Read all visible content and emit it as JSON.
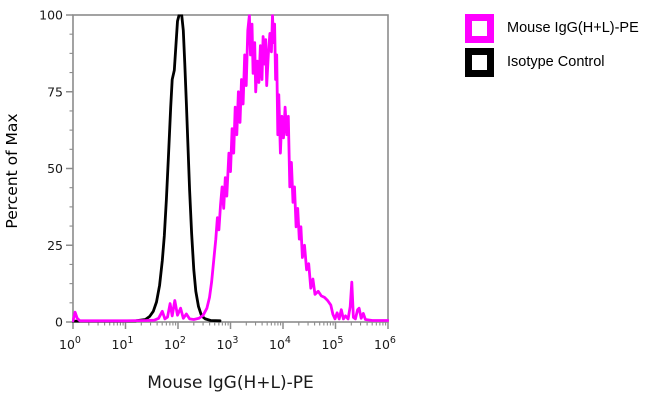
{
  "figure": {
    "y_axis_label": "Percent of Max",
    "x_axis_title": "Mouse IgG(H+L)-PE"
  },
  "legend": {
    "items": [
      {
        "name": "mouse-igg-pe",
        "label": "Mouse IgG(H+L)-PE",
        "color": "#FF00FF"
      },
      {
        "name": "isotype-control",
        "label": "Isotype Control",
        "color": "#000000"
      }
    ]
  },
  "colors": {
    "axis": "#8c8c8c",
    "tick_label": "#1a1a1a",
    "background": "#ffffff",
    "magenta_series": "#FF00FF",
    "black_series": "#000000"
  },
  "chart_data": {
    "type": "line",
    "subtype": "flow-cytometry-histogram-overlay",
    "title": "",
    "xlabel": "Mouse IgG(H+L)-PE",
    "ylabel": "Percent of Max",
    "x_scale": "log10",
    "x_decade_range": [
      0,
      6
    ],
    "x_tick_exponents": [
      0,
      1,
      2,
      3,
      4,
      5,
      6
    ],
    "x_tick_base": "10",
    "ylim": [
      0,
      100
    ],
    "y_major_ticks": [
      0,
      25,
      50,
      75,
      100
    ],
    "y_minor_step": 6.25,
    "grid": false,
    "legend_position": "top-right-outside",
    "series": [
      {
        "name": "Isotype Control",
        "color": "#000000",
        "points": [
          [
            0.0,
            0.3
          ],
          [
            0.8,
            0.3
          ],
          [
            1.2,
            0.4
          ],
          [
            1.38,
            0.8
          ],
          [
            1.46,
            1.8
          ],
          [
            1.53,
            3.5
          ],
          [
            1.59,
            6.5
          ],
          [
            1.65,
            12
          ],
          [
            1.7,
            20
          ],
          [
            1.74,
            28
          ],
          [
            1.78,
            40
          ],
          [
            1.82,
            55
          ],
          [
            1.86,
            70
          ],
          [
            1.89,
            79
          ],
          [
            1.93,
            82
          ],
          [
            1.96,
            90
          ],
          [
            1.99,
            98
          ],
          [
            2.02,
            100
          ],
          [
            2.07,
            100
          ],
          [
            2.1,
            95
          ],
          [
            2.13,
            84
          ],
          [
            2.16,
            71
          ],
          [
            2.19,
            57
          ],
          [
            2.22,
            43
          ],
          [
            2.26,
            29
          ],
          [
            2.3,
            17
          ],
          [
            2.34,
            10
          ],
          [
            2.39,
            5
          ],
          [
            2.45,
            2
          ],
          [
            2.52,
            1
          ],
          [
            2.62,
            0.5
          ],
          [
            2.8,
            0.4
          ]
        ]
      },
      {
        "name": "Mouse IgG(H+L)-PE",
        "color": "#FF00FF",
        "points": [
          [
            0.0,
            0.4
          ],
          [
            0.04,
            3.2
          ],
          [
            0.08,
            1.2
          ],
          [
            0.13,
            0.4
          ],
          [
            0.5,
            0.4
          ],
          [
            1.0,
            0.4
          ],
          [
            1.4,
            0.5
          ],
          [
            1.55,
            0.6
          ],
          [
            1.63,
            1.2
          ],
          [
            1.7,
            3.5
          ],
          [
            1.75,
            1.0
          ],
          [
            1.8,
            1.6
          ],
          [
            1.85,
            6.0
          ],
          [
            1.89,
            2.0
          ],
          [
            1.94,
            7.0
          ],
          [
            1.99,
            2.2
          ],
          [
            2.05,
            4.5
          ],
          [
            2.1,
            1.2
          ],
          [
            2.16,
            2.6
          ],
          [
            2.22,
            1.0
          ],
          [
            2.3,
            0.8
          ],
          [
            2.4,
            1.2
          ],
          [
            2.48,
            2.2
          ],
          [
            2.55,
            4.5
          ],
          [
            2.6,
            8.0
          ],
          [
            2.64,
            13
          ],
          [
            2.68,
            20
          ],
          [
            2.72,
            27
          ],
          [
            2.75,
            34
          ],
          [
            2.78,
            30
          ],
          [
            2.81,
            38
          ],
          [
            2.84,
            44
          ],
          [
            2.87,
            37
          ],
          [
            2.9,
            47
          ],
          [
            2.93,
            41
          ],
          [
            2.97,
            55
          ],
          [
            3.0,
            49
          ],
          [
            3.03,
            63
          ],
          [
            3.06,
            55
          ],
          [
            3.09,
            70
          ],
          [
            3.12,
            61
          ],
          [
            3.15,
            75
          ],
          [
            3.18,
            65
          ],
          [
            3.21,
            79
          ],
          [
            3.24,
            71
          ],
          [
            3.27,
            87
          ],
          [
            3.3,
            77
          ],
          [
            3.33,
            95
          ],
          [
            3.36,
            100
          ],
          [
            3.38,
            87
          ],
          [
            3.41,
            97
          ],
          [
            3.43,
            81
          ],
          [
            3.46,
            91
          ],
          [
            3.48,
            75
          ],
          [
            3.51,
            85
          ],
          [
            3.54,
            78
          ],
          [
            3.57,
            90
          ],
          [
            3.6,
            79
          ],
          [
            3.62,
            93
          ],
          [
            3.65,
            84
          ],
          [
            3.67,
            92
          ],
          [
            3.69,
            77
          ],
          [
            3.72,
            87
          ],
          [
            3.75,
            94
          ],
          [
            3.78,
            88
          ],
          [
            3.8,
            100
          ],
          [
            3.82,
            91
          ],
          [
            3.84,
            97
          ],
          [
            3.86,
            79
          ],
          [
            3.88,
            87
          ],
          [
            3.9,
            61
          ],
          [
            3.92,
            74
          ],
          [
            3.95,
            55
          ],
          [
            3.98,
            67
          ],
          [
            4.01,
            60
          ],
          [
            4.04,
            70
          ],
          [
            4.07,
            61
          ],
          [
            4.1,
            67
          ],
          [
            4.13,
            44
          ],
          [
            4.16,
            52
          ],
          [
            4.19,
            39
          ],
          [
            4.22,
            44
          ],
          [
            4.25,
            31
          ],
          [
            4.28,
            37
          ],
          [
            4.31,
            27
          ],
          [
            4.34,
            31
          ],
          [
            4.37,
            21
          ],
          [
            4.41,
            25
          ],
          [
            4.45,
            17
          ],
          [
            4.49,
            19
          ],
          [
            4.53,
            11
          ],
          [
            4.57,
            14
          ],
          [
            4.61,
            9
          ],
          [
            4.67,
            10
          ],
          [
            4.73,
            8.5
          ],
          [
            4.79,
            8
          ],
          [
            4.85,
            7
          ],
          [
            4.91,
            5.5
          ],
          [
            4.95,
            2.5
          ],
          [
            4.99,
            1.0
          ],
          [
            5.03,
            3.0
          ],
          [
            5.07,
            1.0
          ],
          [
            5.11,
            4.0
          ],
          [
            5.15,
            1.0
          ],
          [
            5.19,
            2.0
          ],
          [
            5.24,
            1.0
          ],
          [
            5.28,
            5.0
          ],
          [
            5.31,
            13
          ],
          [
            5.34,
            1.5
          ],
          [
            5.38,
            1.0
          ],
          [
            5.42,
            4.0
          ],
          [
            5.45,
            4.5
          ],
          [
            5.49,
            1.2
          ],
          [
            5.53,
            2.8
          ],
          [
            5.57,
            0.8
          ],
          [
            5.7,
            0.5
          ],
          [
            5.85,
            0.5
          ],
          [
            6.0,
            0.5
          ]
        ]
      }
    ]
  }
}
